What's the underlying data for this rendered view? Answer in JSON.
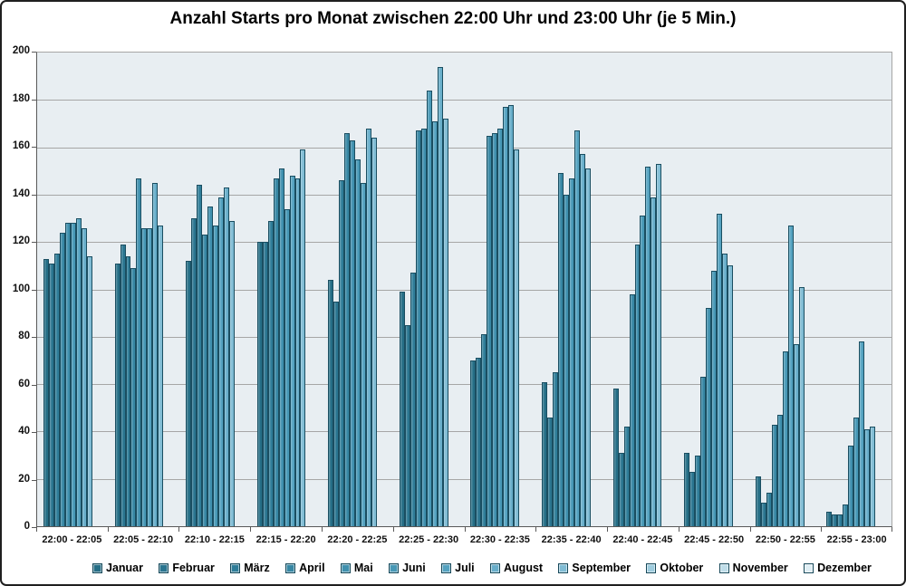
{
  "chart_data": {
    "type": "bar",
    "title": "Anzahl Starts pro Monat zwischen 22:00 Uhr und 23:00 Uhr (je 5 Min.)",
    "xlabel": "",
    "ylabel": "",
    "ylim": [
      0,
      200
    ],
    "ytick_step": 20,
    "grid": true,
    "legend_position": "bottom",
    "plot_bg": "#E8EEF2",
    "bar_border_color": "#1A4E61",
    "categories": [
      "22:00 - 22:05",
      "22:05 - 22:10",
      "22:10 - 22:15",
      "22:15 - 22:20",
      "22:20 - 22:25",
      "22:25 - 22:30",
      "22:30 - 22:35",
      "22:35 - 22:40",
      "22:40 - 22:45",
      "22:45 - 22:50",
      "22:50 - 22:55",
      "22:55 - 23:00"
    ],
    "series": [
      {
        "name": "Januar",
        "color": "#256E86",
        "values": [
          113,
          111,
          112,
          120,
          104,
          99,
          70,
          61,
          58,
          31,
          21,
          6
        ]
      },
      {
        "name": "Februar",
        "color": "#2A7590",
        "values": [
          111,
          119,
          130,
          120,
          95,
          85,
          71,
          46,
          31,
          23,
          10,
          5
        ]
      },
      {
        "name": "März",
        "color": "#2F7D99",
        "values": [
          115,
          114,
          144,
          129,
          146,
          107,
          81,
          65,
          42,
          30,
          14,
          5
        ]
      },
      {
        "name": "April",
        "color": "#3787A4",
        "values": [
          124,
          109,
          123,
          147,
          166,
          167,
          165,
          149,
          98,
          63,
          43,
          9
        ]
      },
      {
        "name": "Mai",
        "color": "#3F90AE",
        "values": [
          128,
          147,
          135,
          151,
          163,
          168,
          166,
          140,
          119,
          92,
          47,
          34
        ]
      },
      {
        "name": "Juni",
        "color": "#4798B6",
        "values": [
          128,
          126,
          127,
          134,
          155,
          184,
          168,
          147,
          131,
          108,
          74,
          46
        ]
      },
      {
        "name": "Juli",
        "color": "#54A2C0",
        "values": [
          130,
          126,
          139,
          148,
          145,
          171,
          177,
          167,
          152,
          132,
          127,
          78
        ]
      },
      {
        "name": "August",
        "color": "#68AECA",
        "values": [
          126,
          145,
          143,
          147,
          168,
          194,
          178,
          157,
          139,
          115,
          77,
          41
        ]
      },
      {
        "name": "September",
        "color": "#80BCD4",
        "values": [
          114,
          127,
          129,
          159,
          164,
          172,
          159,
          151,
          153,
          110,
          101,
          42
        ]
      },
      {
        "name": "Oktober",
        "color": "#9ECCDE",
        "values": [
          0,
          0,
          0,
          0,
          0,
          0,
          0,
          0,
          0,
          0,
          0,
          0
        ]
      },
      {
        "name": "November",
        "color": "#BFDDE9",
        "values": [
          0,
          0,
          0,
          0,
          0,
          0,
          0,
          0,
          0,
          0,
          0,
          0
        ]
      },
      {
        "name": "Dezember",
        "color": "#DFEEF4",
        "values": [
          0,
          0,
          0,
          0,
          0,
          0,
          0,
          0,
          0,
          0,
          0,
          0
        ]
      }
    ]
  }
}
